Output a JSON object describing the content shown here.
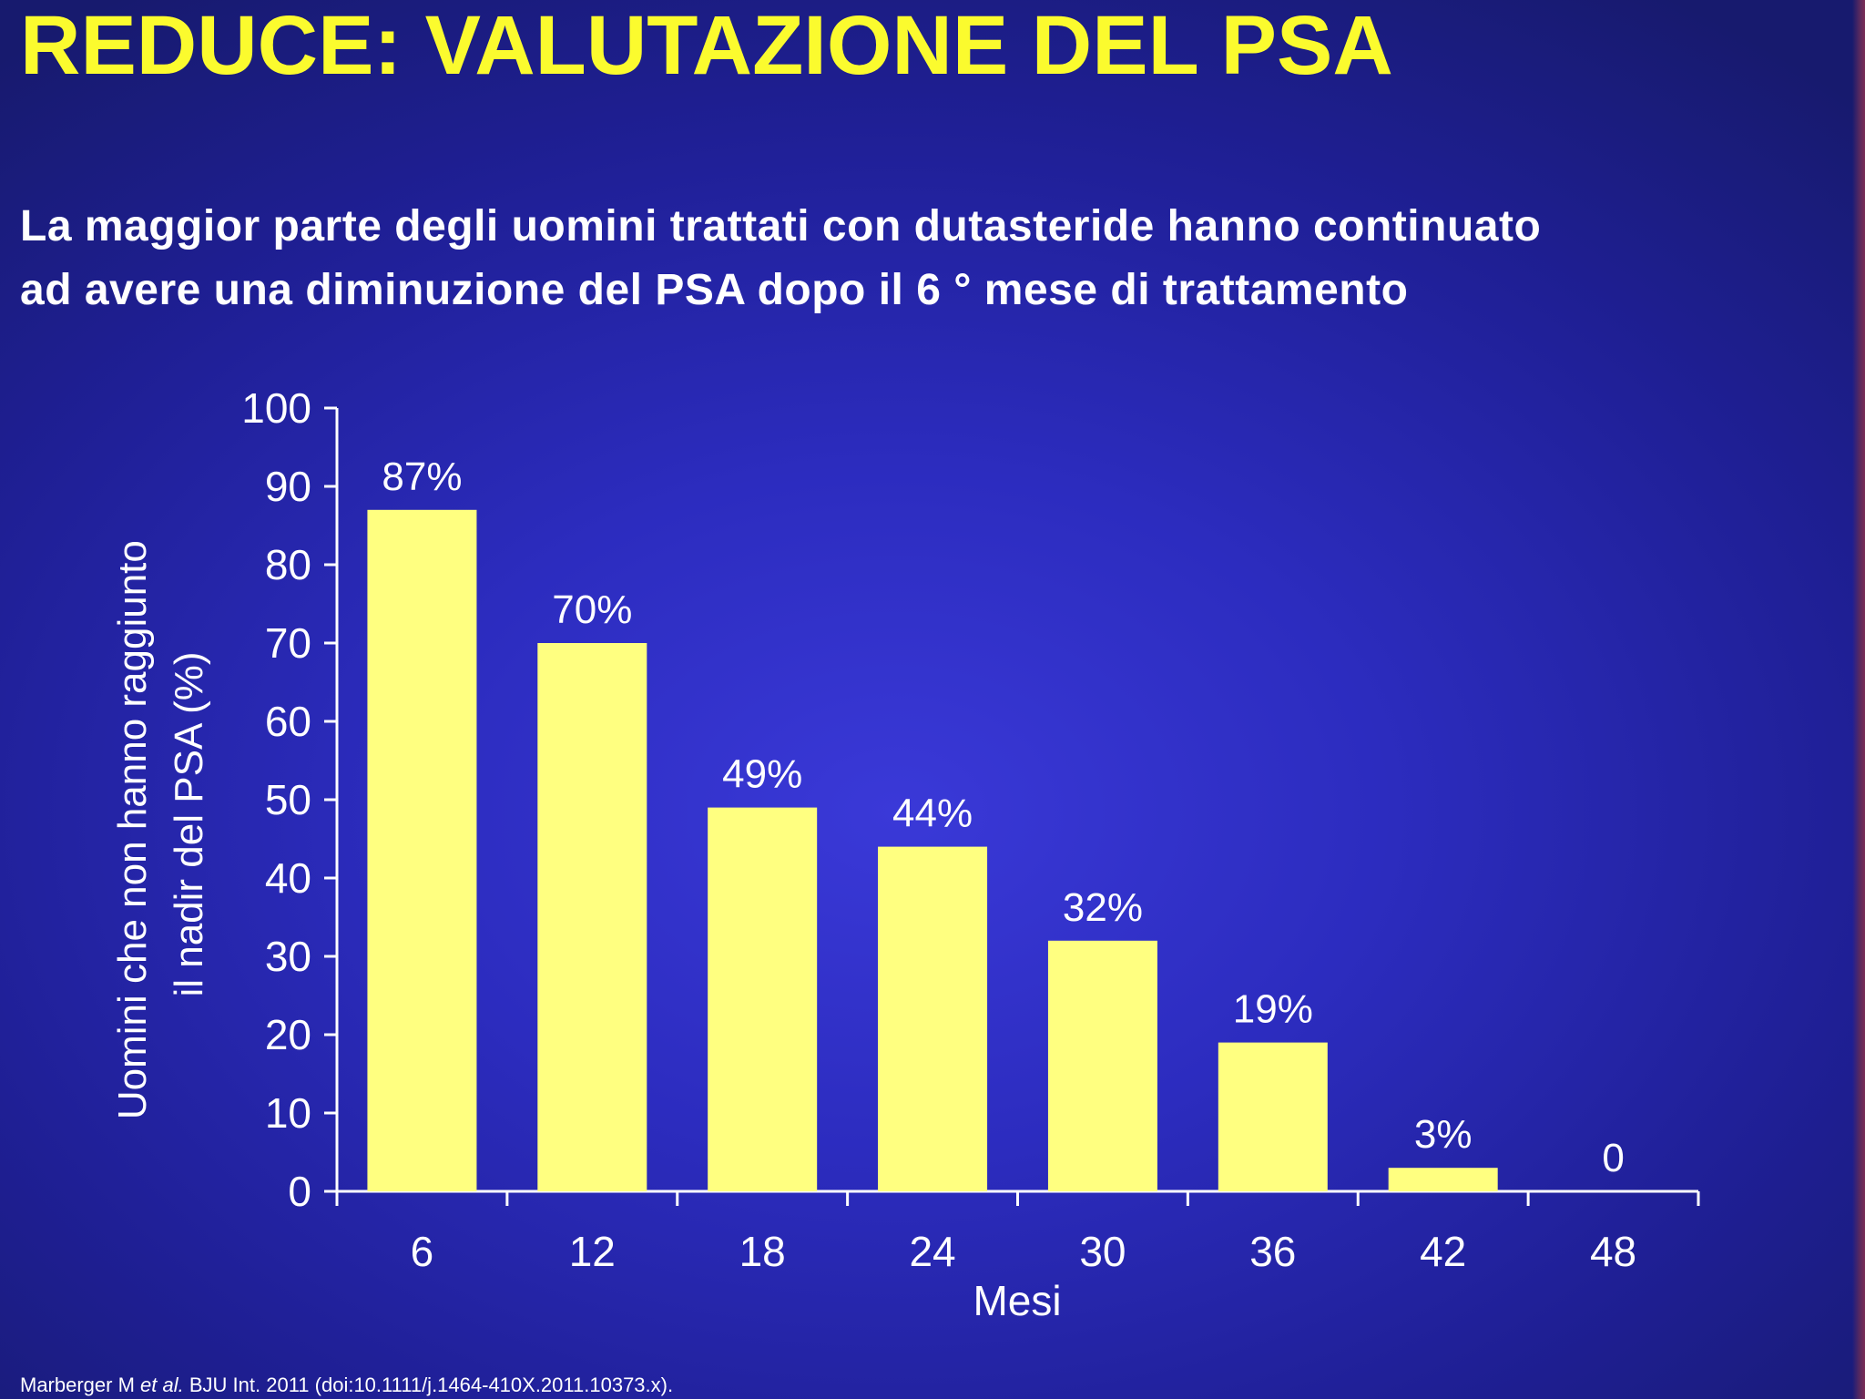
{
  "slide": {
    "title": "REDUCE: VALUTAZIONE DEL PSA",
    "subtitle_line1": "La maggior parte degli uomini trattati con dutasteride hanno continuato",
    "subtitle_line2": "ad avere una diminuzione del PSA dopo il 6 ° mese di trattamento",
    "citation_author": "Marberger M ",
    "citation_etal": "et al.",
    "citation_rest": " BJU Int. 2011 (doi:10.1111/j.1464-410X.2011.10373.x)."
  },
  "colors": {
    "title": "#fbfb2e",
    "bar": "#ffff80",
    "text": "#ffffff",
    "axis": "#ffffff"
  },
  "chart_data": {
    "type": "bar",
    "categories": [
      "6",
      "12",
      "18",
      "24",
      "30",
      "36",
      "42",
      "48"
    ],
    "values": [
      87,
      70,
      49,
      44,
      32,
      19,
      3,
      0
    ],
    "data_labels": [
      "87%",
      "70%",
      "49%",
      "44%",
      "32%",
      "19%",
      "3%",
      "0"
    ],
    "xlabel": "Mesi",
    "ylabel_line1": "Uomini che non hanno raggiunto",
    "ylabel_line2": "il nadir del PSA (%)",
    "ylim": [
      0,
      100
    ],
    "yticks": [
      0,
      10,
      20,
      30,
      40,
      50,
      60,
      70,
      80,
      90,
      100
    ],
    "grid": false,
    "legend": "none"
  }
}
